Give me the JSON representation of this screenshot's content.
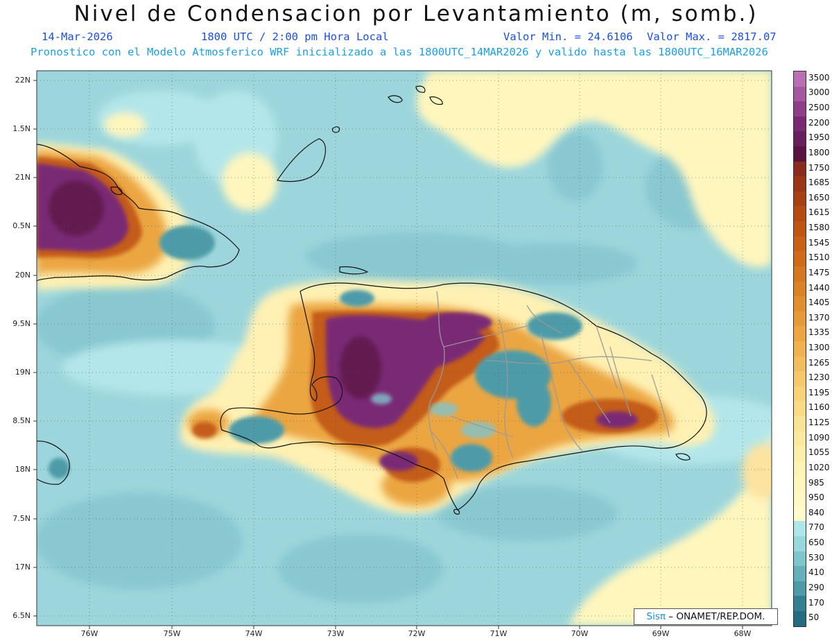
{
  "header": {
    "title": "Nivel de Condensacion por Levantamiento (m, somb.)",
    "date": "14-Mar-2026",
    "time": "1800 UTC / 2:00 pm Hora Local",
    "min_label": "Valor Min. = 24.6106",
    "max_label": "Valor Max. = 2817.07",
    "forecast_line": "Pronostico con el Modelo Atmosferico WRF inicializado a las 1800UTC_14MAR2026 y valido hasta las  1800UTC_16MAR2026"
  },
  "axes": {
    "lat_labels": [
      "22N",
      "1.5N",
      "21N",
      "0.5N",
      "20N",
      "9.5N",
      "19N",
      "8.5N",
      "18N",
      "7.5N",
      "17N",
      "6.5N"
    ],
    "lon_labels": [
      "76W",
      "75W",
      "74W",
      "73W",
      "72W",
      "71W",
      "70W",
      "69W",
      "68W"
    ]
  },
  "colorbar": {
    "levels": [
      "3500",
      "3000",
      "2500",
      "2200",
      "1950",
      "1800",
      "1750",
      "1685",
      "1650",
      "1615",
      "1580",
      "1545",
      "1510",
      "1475",
      "1440",
      "1405",
      "1370",
      "1335",
      "1300",
      "1265",
      "1230",
      "1195",
      "1160",
      "1125",
      "1090",
      "1055",
      "1020",
      "985",
      "950",
      "840",
      "770",
      "650",
      "530",
      "410",
      "290",
      "170",
      "50"
    ],
    "colors": [
      "#b86fb4",
      "#a5589f",
      "#8f3f89",
      "#7a2a74",
      "#66205e",
      "#5a1240",
      "#8a2c1c",
      "#9a3615",
      "#a84013",
      "#b54a12",
      "#c05512",
      "#c96014",
      "#d06a18",
      "#d6761e",
      "#dc8226",
      "#e18e2e",
      "#e69a38",
      "#eba642",
      "#efb24e",
      "#f2bd5c",
      "#f5c86a",
      "#f7d278",
      "#f9db86",
      "#fae394",
      "#fbe99f",
      "#fcefaa",
      "#fdf3b4",
      "#fef6bd",
      "#fff8c4",
      "#fffbcc",
      "#aee6ea",
      "#98d7dc",
      "#80c4cc",
      "#66b0bb",
      "#4d9ba8",
      "#357f93",
      "#256b82"
    ]
  },
  "credit": {
    "sis": "Sisπ",
    "rest": " – ONAMET/REP.DOM."
  }
}
